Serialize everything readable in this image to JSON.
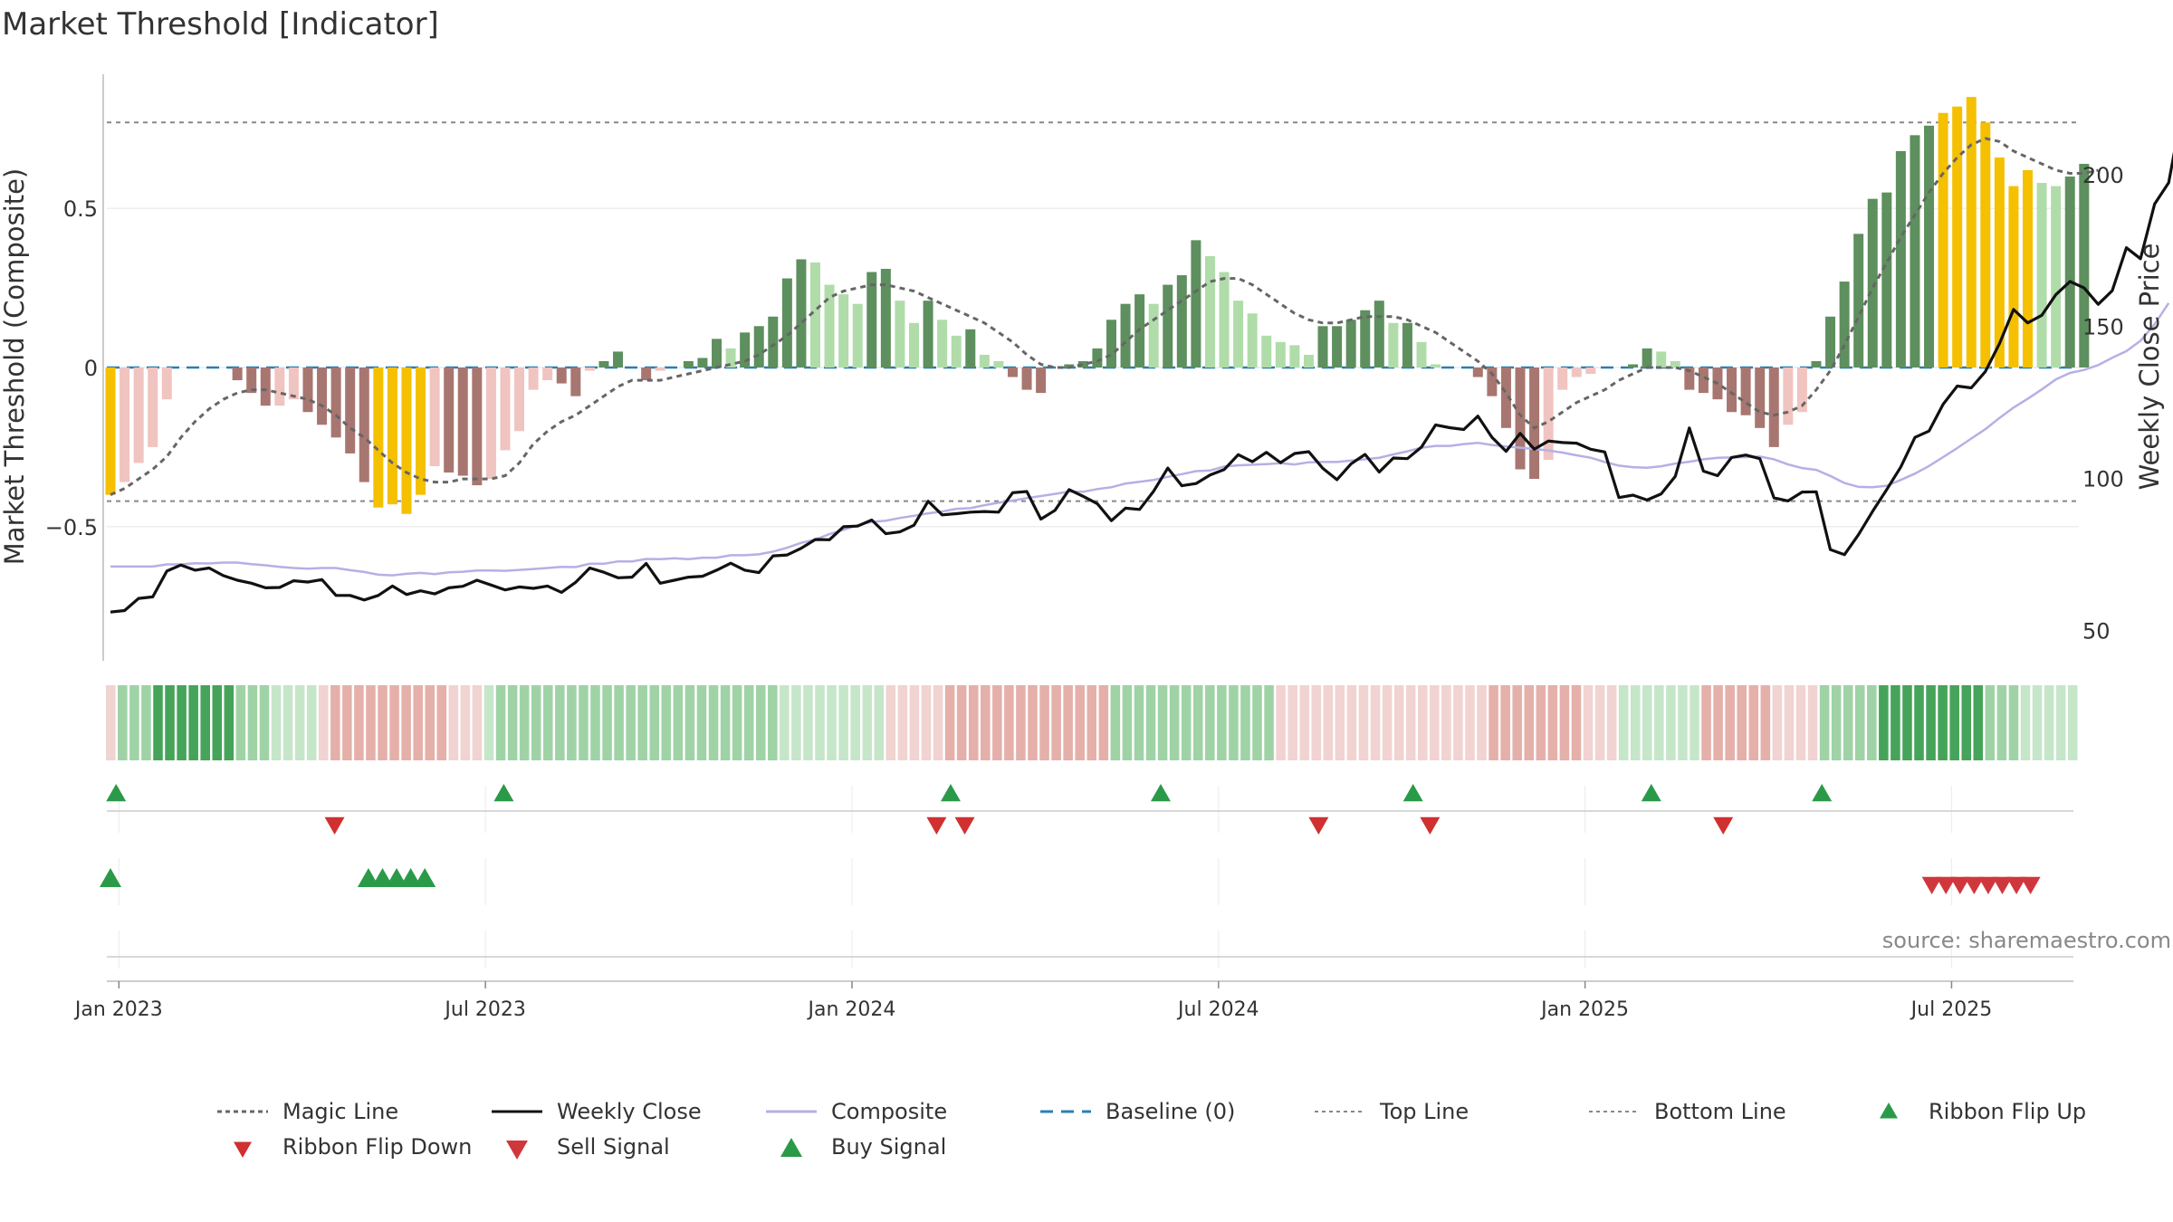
{
  "chart_data": {
    "type": "bar",
    "title": "Market Threshold [Indicator]",
    "ylabel_left": "Market Threshold (Composite)",
    "ylabel_right": "Weekly Close Price",
    "source": "source: sharemaestro.com",
    "y_left_ticks": [
      {
        "v": 0.5,
        "label": "0.5"
      },
      {
        "v": 0,
        "label": "0"
      },
      {
        "v": -0.5,
        "label": "−0.5"
      }
    ],
    "y_right_ticks": [
      {
        "v": 200,
        "label": "200"
      },
      {
        "v": 150,
        "label": "150"
      },
      {
        "v": 100,
        "label": "100"
      },
      {
        "v": 50,
        "label": "50"
      }
    ],
    "x_ticks": [
      {
        "w": 0.6,
        "label": "Jan 2023"
      },
      {
        "w": 26.6,
        "label": "Jul 2023"
      },
      {
        "w": 52.6,
        "label": "Jan 2024"
      },
      {
        "w": 78.6,
        "label": "Jul 2024"
      },
      {
        "w": 104.6,
        "label": "Jan 2025"
      },
      {
        "w": 130.6,
        "label": "Jul 2025"
      }
    ],
    "y_left_range": [
      -0.95,
      0.95
    ],
    "y_right_range": [
      37,
      236
    ],
    "top_line": 0.77,
    "bottom_line": -0.42,
    "colors": {
      "strong_green": "#5e8f5e",
      "light_green": "#b0dcaa",
      "strong_red": "#a87670",
      "light_red": "#f0c4c0",
      "extreme": "#f5c000",
      "close": "#111111",
      "composite": "#b5b0e5",
      "magic": "#666666",
      "baseline": "#2a7fb0",
      "threshold": "#888888",
      "up_marker": "#2a9a48",
      "down_marker": "#d0373d"
    },
    "composite_bars": [
      -0.4,
      -0.36,
      -0.3,
      -0.25,
      -0.1,
      0,
      0,
      0,
      0,
      -0.04,
      -0.08,
      -0.12,
      -0.12,
      -0.1,
      -0.14,
      -0.18,
      -0.22,
      -0.27,
      -0.36,
      -0.44,
      -0.43,
      -0.46,
      -0.4,
      -0.31,
      -0.33,
      -0.34,
      -0.37,
      -0.35,
      -0.26,
      -0.2,
      -0.07,
      -0.04,
      -0.05,
      -0.09,
      -0.01,
      0.02,
      0.05,
      0,
      -0.04,
      -0.01,
      0,
      0.02,
      0.03,
      0.09,
      0.06,
      0.11,
      0.13,
      0.16,
      0.28,
      0.34,
      0.33,
      0.26,
      0.23,
      0.2,
      0.3,
      0.31,
      0.21,
      0.14,
      0.21,
      0.15,
      0.1,
      0.12,
      0.04,
      0.02,
      -0.03,
      -0.07,
      -0.08,
      0,
      0.01,
      0.02,
      0.06,
      0.15,
      0.2,
      0.23,
      0.2,
      0.26,
      0.29,
      0.4,
      0.35,
      0.3,
      0.21,
      0.17,
      0.1,
      0.08,
      0.07,
      0.04,
      0.13,
      0.13,
      0.15,
      0.18,
      0.21,
      0.14,
      0.14,
      0.08,
      0.01,
      0,
      0,
      -0.03,
      -0.09,
      -0.19,
      -0.32,
      -0.35,
      -0.29,
      -0.07,
      -0.03,
      -0.02,
      0,
      0,
      0.01,
      0.06,
      0.05,
      0.02,
      -0.07,
      -0.08,
      -0.1,
      -0.14,
      -0.15,
      -0.19,
      -0.25,
      -0.18,
      -0.14,
      0.02,
      0.16,
      0.27,
      0.42,
      0.53,
      0.55,
      0.68,
      0.73,
      0.76,
      0.8,
      0.82,
      0.85,
      0.77,
      0.66,
      0.57,
      0.62,
      0.58,
      0.57,
      0.6,
      0.64
    ],
    "extreme_bars": [
      0,
      19,
      20,
      21,
      22,
      130,
      131,
      132,
      133,
      134,
      135,
      136
    ],
    "close_price": [
      56,
      56.5,
      60.5,
      61,
      69.5,
      71.5,
      69.8,
      70.5,
      68,
      66.5,
      65.5,
      64,
      64.1,
      66.3,
      65.9,
      66.7,
      61.5,
      61.5,
      60,
      61.5,
      64.6,
      61.8,
      63,
      62,
      64,
      64.5,
      66.5,
      64.9,
      63.3,
      64.3,
      63.8,
      64.6,
      62.5,
      65.8,
      70.5,
      69.1,
      67.3,
      67.5,
      72,
      65.5,
      66.5,
      67.5,
      67.8,
      69.8,
      72.1,
      69.8,
      69,
      74.5,
      74.8,
      77,
      79.9,
      79.8,
      84.1,
      84.3,
      86.3,
      81.8,
      82.4,
      84.6,
      92.5,
      88,
      88.4,
      88.9,
      89.1,
      88.9,
      95.3,
      95.7,
      86.6,
      89.5,
      96.3,
      94.1,
      91.7,
      86.1,
      90.2,
      89.8,
      95.8,
      103.4,
      97.6,
      98.3,
      101.1,
      102.9,
      107.8,
      105.5,
      108.6,
      105.2,
      108.2,
      108.8,
      103.3,
      99.6,
      104.8,
      107.9,
      102.1,
      106.7,
      106.5,
      110.3,
      117.6,
      116.7,
      116.1,
      120.5,
      113.5,
      108.9,
      114.8,
      109.6,
      112.3,
      111.8,
      111.6,
      109.6,
      108.7,
      93.7,
      94.5,
      92.9,
      94.9,
      100.7,
      116.6,
      102.4,
      100.9,
      106.9,
      107.7,
      106.5,
      93.6,
      92.6,
      95.5,
      95.6,
      76.6,
      74.9,
      81.5,
      89.2,
      96.3,
      103.8,
      113.5,
      115.6,
      124.4,
      130.4,
      129.8,
      135.2,
      144.4,
      155.6,
      151.2,
      153.7,
      160.5,
      164.8,
      162.7,
      157.3,
      161.8,
      175.9,
      172.3,
      190.3,
      197.3,
      222.3
    ],
    "composite_line": [
      71,
      71,
      71,
      71,
      71.7,
      71.7,
      72.1,
      72,
      72.3,
      72.3,
      71.8,
      71.4,
      70.9,
      70.5,
      70.3,
      70.5,
      70.5,
      69.8,
      69.2,
      68.3,
      68.1,
      68.6,
      68.9,
      68.5,
      69.1,
      69.3,
      69.7,
      69.7,
      69.6,
      69.9,
      70.2,
      70.5,
      70.9,
      70.8,
      71.9,
      71.9,
      72.7,
      72.7,
      73.5,
      73.4,
      73.7,
      73.4,
      73.9,
      73.9,
      74.7,
      74.7,
      75,
      75.9,
      77.2,
      78.8,
      79.9,
      81.7,
      83.1,
      84.6,
      85.7,
      86.1,
      87,
      87.7,
      88.5,
      89.1,
      90,
      90.2,
      91.2,
      92,
      92.7,
      93.5,
      94.2,
      94.9,
      95.7,
      95.6,
      96.5,
      97.1,
      98.3,
      98.9,
      99.5,
      100.5,
      101.4,
      102.4,
      102.6,
      103.9,
      104.3,
      104.5,
      104.7,
      105,
      104.6,
      105.3,
      105.4,
      105.4,
      105.9,
      106.3,
      106.8,
      107.9,
      108.9,
      110.1,
      110.7,
      110.7,
      111.3,
      111.7,
      111,
      110.5,
      110.1,
      109.7,
      109.2,
      108.5,
      107.6,
      106.8,
      105.4,
      104.2,
      103.7,
      103.5,
      104,
      104.9,
      105.5,
      106.3,
      106.8,
      106.9,
      107,
      107.2,
      106.3,
      104.6,
      103.4,
      102.8,
      100.8,
      98.5,
      97.2,
      97.1,
      97.6,
      99.5,
      101.6,
      104.1,
      107,
      110,
      113.1,
      116.2,
      119.9,
      123.3,
      126.2,
      129.3,
      132.6,
      134.7,
      135.7,
      137.3,
      139.7,
      141.9,
      145.3,
      150.7,
      157.7
    ],
    "magic_line": [
      -0.4,
      -0.38,
      -0.35,
      -0.32,
      -0.28,
      -0.22,
      -0.17,
      -0.13,
      -0.1,
      -0.08,
      -0.07,
      -0.07,
      -0.08,
      -0.09,
      -0.1,
      -0.12,
      -0.15,
      -0.19,
      -0.22,
      -0.26,
      -0.3,
      -0.33,
      -0.35,
      -0.36,
      -0.36,
      -0.35,
      -0.35,
      -0.35,
      -0.34,
      -0.3,
      -0.24,
      -0.2,
      -0.17,
      -0.15,
      -0.12,
      -0.09,
      -0.06,
      -0.04,
      -0.04,
      -0.04,
      -0.03,
      -0.02,
      -0.01,
      0,
      0.01,
      0.02,
      0.04,
      0.07,
      0.1,
      0.14,
      0.18,
      0.22,
      0.24,
      0.25,
      0.26,
      0.26,
      0.25,
      0.24,
      0.22,
      0.2,
      0.18,
      0.16,
      0.14,
      0.11,
      0.08,
      0.04,
      0.01,
      0,
      0,
      0.01,
      0.02,
      0.04,
      0.08,
      0.12,
      0.15,
      0.18,
      0.21,
      0.24,
      0.27,
      0.28,
      0.28,
      0.26,
      0.23,
      0.2,
      0.17,
      0.15,
      0.14,
      0.14,
      0.15,
      0.16,
      0.16,
      0.16,
      0.15,
      0.13,
      0.11,
      0.08,
      0.05,
      0.02,
      -0.02,
      -0.08,
      -0.15,
      -0.19,
      -0.17,
      -0.14,
      -0.11,
      -0.09,
      -0.07,
      -0.04,
      -0.02,
      0,
      0,
      0,
      -0.01,
      -0.03,
      -0.05,
      -0.08,
      -0.11,
      -0.14,
      -0.15,
      -0.14,
      -0.12,
      -0.07,
      -0.01,
      0.07,
      0.16,
      0.25,
      0.33,
      0.41,
      0.48,
      0.55,
      0.61,
      0.66,
      0.7,
      0.72,
      0.71,
      0.68,
      0.66,
      0.64,
      0.62,
      0.61,
      0.61,
      0.62
    ],
    "ribbon_levels": [
      -1,
      2,
      2,
      2,
      3,
      3,
      3,
      3,
      3,
      3,
      3,
      2,
      2,
      2,
      1,
      1,
      1,
      1,
      -1,
      -2,
      -2,
      -2,
      -2,
      -2,
      -2,
      -2,
      -2,
      -2,
      -2,
      -1,
      -1,
      -1,
      1,
      2,
      2,
      2,
      2,
      2,
      2,
      2,
      2,
      2,
      2,
      2,
      2,
      2,
      2,
      2,
      2,
      2,
      2,
      2,
      2,
      2,
      2,
      2,
      2,
      1,
      1,
      1,
      1,
      1,
      1,
      1,
      1,
      1,
      -1,
      -1,
      -1,
      -1,
      -1,
      -2,
      -2,
      -2,
      -2,
      -2,
      -2,
      -2,
      -2,
      -2,
      -2,
      -2,
      -2,
      -2,
      -2,
      2,
      2,
      2,
      2,
      2,
      2,
      2,
      2,
      2,
      2,
      2,
      2,
      2,
      2,
      -1,
      -1,
      -1,
      -1,
      -1,
      -1,
      -1,
      -1,
      -1,
      -1,
      -1,
      -1,
      -1,
      -1,
      -1,
      -1,
      -1,
      -1,
      -2,
      -2,
      -2,
      -2,
      -2,
      -2,
      -2,
      -2,
      -1,
      -1,
      -1,
      1,
      1,
      1,
      1,
      1,
      1,
      1,
      -2,
      -2,
      -2,
      -2,
      -2,
      -2,
      -1,
      -1,
      -1,
      -1,
      2,
      2,
      2,
      2,
      2,
      3,
      3,
      3,
      3,
      3,
      3,
      3,
      3,
      3,
      2,
      2,
      2,
      1,
      1,
      1,
      1,
      1
    ],
    "ribbon_flip_up": [
      0.4,
      27.9,
      59.6,
      74.5,
      92.4,
      109.3,
      121.4
    ],
    "ribbon_flip_down": [
      15.9,
      58.6,
      60.6,
      85.7,
      93.6,
      114.4
    ],
    "buy_signal": [
      0,
      18.3,
      19.3,
      20.3,
      21.3,
      22.3
    ],
    "sell_signal": [
      129.2,
      130.2,
      131.2,
      132.2,
      133.2,
      134.2,
      135.2,
      136.2
    ],
    "legend": [
      {
        "key": "magic",
        "label": "Magic Line"
      },
      {
        "key": "close",
        "label": "Weekly Close"
      },
      {
        "key": "composite",
        "label": "Composite"
      },
      {
        "key": "baseline",
        "label": "Baseline (0)"
      },
      {
        "key": "top",
        "label": "Top Line"
      },
      {
        "key": "bottom",
        "label": "Bottom Line"
      },
      {
        "key": "flipup",
        "label": "Ribbon Flip Up"
      },
      {
        "key": "flipdown",
        "label": "Ribbon Flip Down"
      },
      {
        "key": "sell",
        "label": "Sell Signal"
      },
      {
        "key": "buy",
        "label": "Buy Signal"
      }
    ]
  }
}
